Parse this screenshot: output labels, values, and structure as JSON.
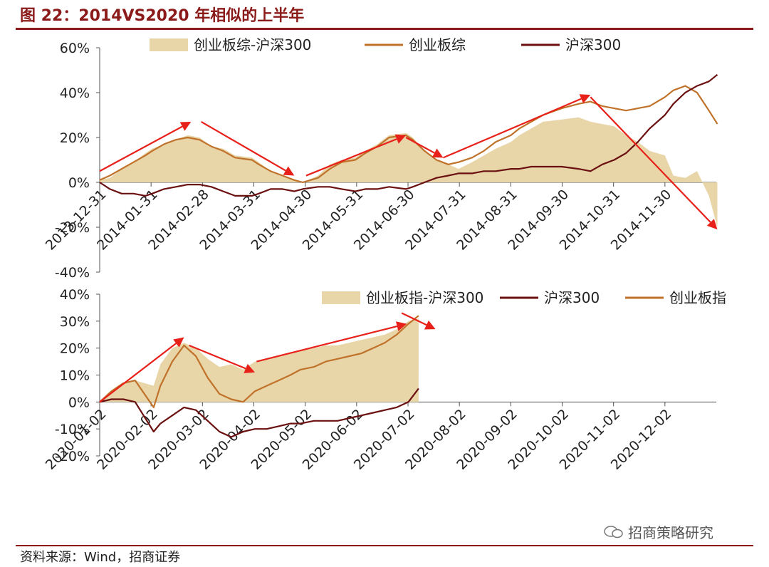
{
  "figure_title": "图 22：2014VS2020 年相似的上半年",
  "source": "资料来源：Wind，招商证券",
  "watermark": "招商策略研究",
  "colors": {
    "fill": "#e8d5a8",
    "index": "#c0722a",
    "hs300": "#6b1010",
    "arrow": "#e8201a",
    "title": "#8b1a1a"
  },
  "chart_data": [
    {
      "type": "area",
      "ylim": [
        -40,
        60
      ],
      "yticks": [
        "60%",
        "40%",
        "20%",
        "0%",
        "-20%",
        "-40%"
      ],
      "ytick_values": [
        60,
        40,
        20,
        0,
        -20,
        -40
      ],
      "xtick_labels": [
        "2013-12-31",
        "2014-01-31",
        "2014-02-28",
        "2014-03-31",
        "2014-04-30",
        "2014-05-31",
        "2014-06-30",
        "2014-07-31",
        "2014-08-31",
        "2014-09-30",
        "2014-10-31",
        "2014-11-30"
      ],
      "x_dates": [
        "2013-12-31",
        "2014-01-06",
        "2014-01-13",
        "2014-01-20",
        "2014-01-27",
        "2014-01-31",
        "2014-02-07",
        "2014-02-14",
        "2014-02-21",
        "2014-02-28",
        "2014-03-07",
        "2014-03-14",
        "2014-03-21",
        "2014-03-31",
        "2014-04-04",
        "2014-04-11",
        "2014-04-18",
        "2014-04-25",
        "2014-04-30",
        "2014-05-09",
        "2014-05-16",
        "2014-05-23",
        "2014-05-31",
        "2014-06-06",
        "2014-06-13",
        "2014-06-20",
        "2014-06-30",
        "2014-07-04",
        "2014-07-11",
        "2014-07-18",
        "2014-07-25",
        "2014-07-31",
        "2014-08-08",
        "2014-08-15",
        "2014-08-22",
        "2014-08-31",
        "2014-09-05",
        "2014-09-12",
        "2014-09-19",
        "2014-09-30",
        "2014-10-10",
        "2014-10-17",
        "2014-10-24",
        "2014-10-31",
        "2014-11-07",
        "2014-11-14",
        "2014-11-21",
        "2014-11-30",
        "2014-12-05",
        "2014-12-12",
        "2014-12-19",
        "2014-12-26",
        "2014-12-31"
      ],
      "series": [
        {
          "name": "创业板综-沪深300",
          "kind": "area",
          "values": [
            1,
            2,
            6,
            9,
            13,
            15,
            17,
            19,
            21,
            20,
            16,
            15,
            12,
            11,
            9,
            5,
            3,
            1,
            0,
            3,
            8,
            10,
            11,
            14,
            17,
            21,
            22,
            20,
            14,
            10,
            8,
            6,
            9,
            12,
            15,
            18,
            21,
            24,
            27,
            28,
            29,
            27,
            26,
            25,
            21,
            18,
            14,
            12,
            3,
            2,
            5,
            -6,
            -20
          ]
        },
        {
          "name": "创业板综",
          "kind": "line",
          "values": [
            1,
            3,
            6,
            9,
            12,
            14,
            17,
            19,
            20,
            19,
            16,
            14,
            11,
            10,
            8,
            5,
            3,
            1,
            0,
            2,
            6,
            9,
            10,
            13,
            16,
            20,
            21,
            19,
            14,
            10,
            8,
            9,
            11,
            14,
            18,
            21,
            24,
            27,
            30,
            33,
            35,
            36,
            34,
            33,
            32,
            33,
            34,
            38,
            41,
            43,
            40,
            32,
            26
          ]
        },
        {
          "name": "沪深300",
          "kind": "line",
          "values": [
            0,
            -3,
            -5,
            -5,
            -6,
            -5,
            -3,
            -2,
            -1,
            -1,
            -2,
            -4,
            -6,
            -6,
            -5,
            -3,
            -3,
            -4,
            -3,
            -2,
            -2,
            -3,
            -4,
            -3,
            -3,
            -2,
            -3,
            -2,
            0,
            2,
            3,
            4,
            4,
            5,
            5,
            6,
            6,
            7,
            7,
            7,
            6,
            5,
            8,
            10,
            13,
            18,
            24,
            30,
            35,
            40,
            43,
            45,
            48
          ]
        }
      ],
      "legend": [
        "创业板综-沪深300",
        "创业板综",
        "沪深300"
      ],
      "legend_position": "top"
    },
    {
      "type": "area",
      "ylim": [
        -20,
        40
      ],
      "yticks": [
        "40%",
        "30%",
        "20%",
        "10%",
        "0%",
        "-10%",
        "-20%"
      ],
      "ytick_values": [
        40,
        30,
        20,
        10,
        0,
        -10,
        -20
      ],
      "xtick_labels": [
        "2020-01-02",
        "2020-02-02",
        "2020-03-02",
        "2020-04-02",
        "2020-05-02",
        "2020-06-02",
        "2020-07-02",
        "2020-08-02",
        "2020-09-02",
        "2020-10-02",
        "2020-11-02",
        "2020-12-02"
      ],
      "x_dates": [
        "2020-01-02",
        "2020-01-09",
        "2020-01-16",
        "2020-01-23",
        "2020-02-03",
        "2020-02-07",
        "2020-02-14",
        "2020-02-21",
        "2020-02-28",
        "2020-03-06",
        "2020-03-13",
        "2020-03-20",
        "2020-03-27",
        "2020-04-03",
        "2020-04-10",
        "2020-04-17",
        "2020-04-24",
        "2020-04-30",
        "2020-05-08",
        "2020-05-15",
        "2020-05-22",
        "2020-05-29",
        "2020-06-05",
        "2020-06-12",
        "2020-06-19",
        "2020-06-26",
        "2020-07-03",
        "2020-07-09"
      ],
      "series": [
        {
          "name": "创业板指-沪深300",
          "kind": "area",
          "values": [
            0,
            4,
            7,
            8,
            6,
            14,
            20,
            22,
            20,
            16,
            13,
            14,
            12,
            15,
            16,
            17,
            18,
            19,
            20,
            21,
            21,
            22,
            23,
            24,
            25,
            27,
            30,
            31
          ]
        },
        {
          "name": "沪深300",
          "kind": "line",
          "values": [
            0,
            1,
            1,
            0,
            -11,
            -8,
            -5,
            -2,
            -3,
            -7,
            -11,
            -13,
            -11,
            -10,
            -10,
            -9,
            -8,
            -8,
            -7,
            -7,
            -7,
            -6,
            -5,
            -4,
            -3,
            -2,
            0,
            5
          ]
        },
        {
          "name": "创业板指",
          "kind": "line",
          "values": [
            0,
            4,
            7,
            8,
            -2,
            6,
            15,
            21,
            17,
            9,
            3,
            1,
            0,
            4,
            6,
            8,
            10,
            12,
            13,
            15,
            16,
            17,
            18,
            20,
            22,
            25,
            29,
            32
          ]
        }
      ],
      "legend": [
        "创业板指-沪深300",
        "沪深300",
        "创业板指"
      ],
      "legend_position": "top"
    }
  ]
}
